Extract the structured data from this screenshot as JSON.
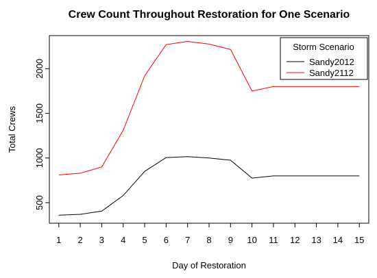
{
  "chart_data": {
    "type": "line",
    "title": "Crew Count Throughout Restoration for One Scenario",
    "xlabel": "Day of Restoration",
    "ylabel": "Total Crews",
    "x": [
      1,
      2,
      3,
      4,
      5,
      6,
      7,
      8,
      9,
      10,
      11,
      12,
      13,
      14,
      15
    ],
    "x_ticks": [
      "1",
      "2",
      "3",
      "4",
      "5",
      "6",
      "7",
      "8",
      "9",
      "10",
      "11",
      "12",
      "13",
      "14",
      "15"
    ],
    "y_ticks": [
      500,
      1000,
      1500,
      2000
    ],
    "y_tick_labels": [
      "500",
      "1000",
      "1500",
      "2000"
    ],
    "xlim": [
      0.56,
      15.44
    ],
    "ylim": [
      270,
      2370
    ],
    "grid": false,
    "legend": {
      "title": "Storm Scenario",
      "placement": "top-right"
    },
    "series": [
      {
        "name": "Sandy2012",
        "color": "#000000",
        "values": [
          360,
          370,
          405,
          580,
          850,
          1005,
          1015,
          1000,
          975,
          775,
          800,
          800,
          800,
          800,
          800
        ]
      },
      {
        "name": "Sandy2112",
        "color": "#ff0000",
        "values": [
          810,
          830,
          900,
          1310,
          1920,
          2270,
          2305,
          2275,
          2215,
          1750,
          1800,
          1800,
          1800,
          1800,
          1800
        ]
      }
    ]
  }
}
